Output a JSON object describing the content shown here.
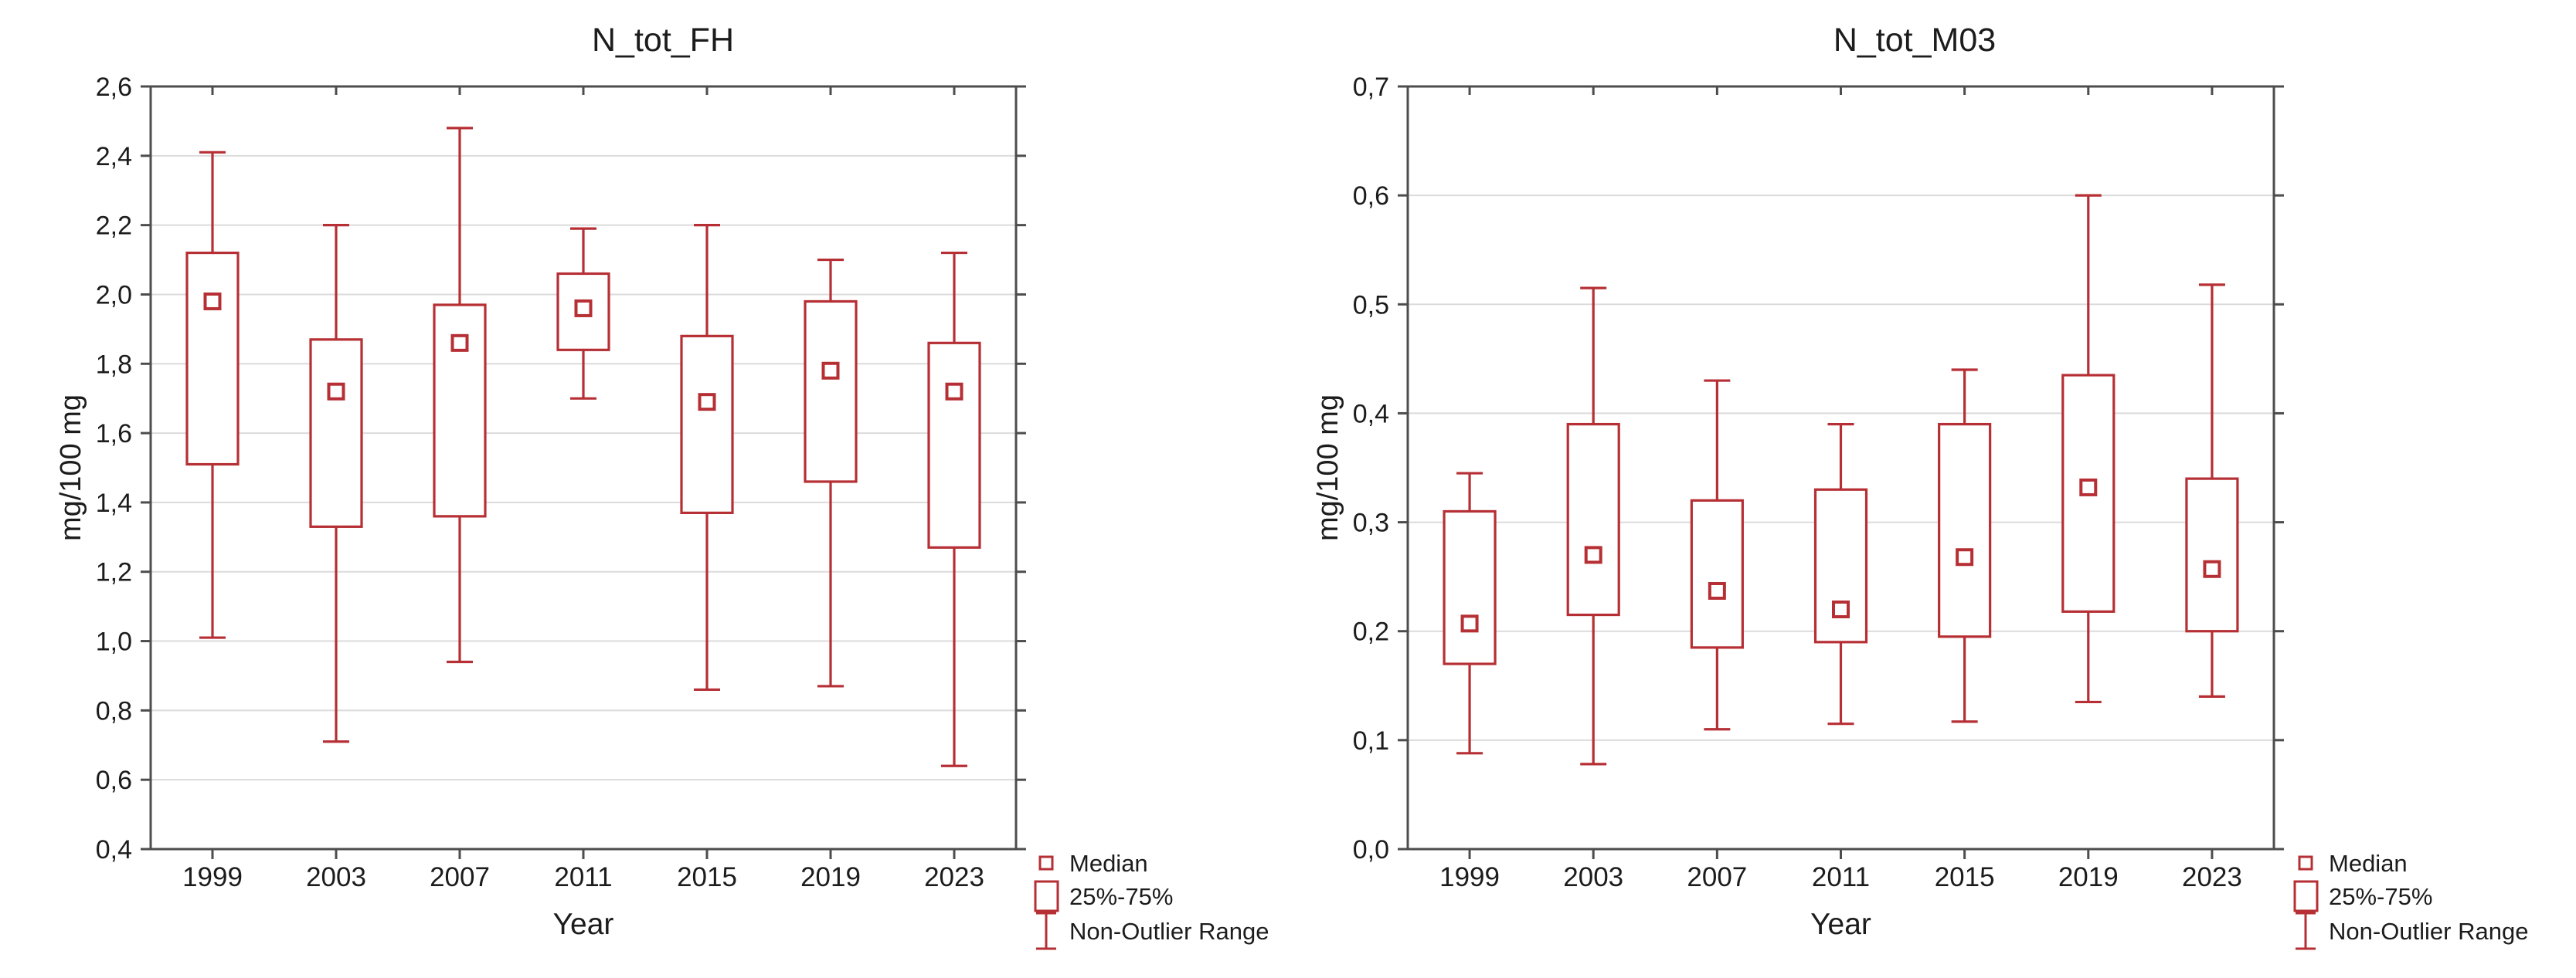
{
  "figure": {
    "background": "#ffffff",
    "accent_color": "#b62f34",
    "frame_color": "#4d4d4d",
    "grid_color": "#dbdbdb",
    "text_color": "#1c1c1c"
  },
  "chart_data": [
    {
      "type": "box",
      "title": "N_tot_FH",
      "xlabel": "Year",
      "ylabel": "mg/100 mg",
      "ylim": [
        0.4,
        2.6
      ],
      "ytick_step": 0.2,
      "decimal_separator": ",",
      "grid": "horizontal",
      "legend_position": "bottom-right",
      "ytick_labels": [
        "0,4",
        "0,6",
        "0,8",
        "1,0",
        "1,2",
        "1,4",
        "1,6",
        "1,8",
        "2,0",
        "2,2",
        "2,4",
        "2,6"
      ],
      "categories": [
        "1999",
        "2003",
        "2007",
        "2011",
        "2015",
        "2019",
        "2023"
      ],
      "series": [
        {
          "year": "1999",
          "non_outlier_min": 1.01,
          "q1": 1.51,
          "median": 1.98,
          "q3": 2.12,
          "non_outlier_max": 2.41
        },
        {
          "year": "2003",
          "non_outlier_min": 0.71,
          "q1": 1.33,
          "median": 1.72,
          "q3": 1.87,
          "non_outlier_max": 2.2
        },
        {
          "year": "2007",
          "non_outlier_min": 0.94,
          "q1": 1.36,
          "median": 1.86,
          "q3": 1.97,
          "non_outlier_max": 2.48
        },
        {
          "year": "2011",
          "non_outlier_min": 1.7,
          "q1": 1.84,
          "median": 1.96,
          "q3": 2.06,
          "non_outlier_max": 2.19
        },
        {
          "year": "2015",
          "non_outlier_min": 0.86,
          "q1": 1.37,
          "median": 1.69,
          "q3": 1.88,
          "non_outlier_max": 2.2
        },
        {
          "year": "2019",
          "non_outlier_min": 0.87,
          "q1": 1.46,
          "median": 1.78,
          "q3": 1.98,
          "non_outlier_max": 2.1
        },
        {
          "year": "2023",
          "non_outlier_min": 0.64,
          "q1": 1.27,
          "median": 1.72,
          "q3": 1.86,
          "non_outlier_max": 2.12
        }
      ],
      "legend": [
        "Median",
        "25%-75%",
        "Non-Outlier Range"
      ]
    },
    {
      "type": "box",
      "title": "N_tot_M03",
      "xlabel": "Year",
      "ylabel": "mg/100 mg",
      "ylim": [
        0.0,
        0.7
      ],
      "ytick_step": 0.1,
      "decimal_separator": ",",
      "grid": "horizontal",
      "legend_position": "bottom-right",
      "ytick_labels": [
        "0,0",
        "0,1",
        "0,2",
        "0,3",
        "0,4",
        "0,5",
        "0,6",
        "0,7"
      ],
      "categories": [
        "1999",
        "2003",
        "2007",
        "2011",
        "2015",
        "2019",
        "2023"
      ],
      "series": [
        {
          "year": "1999",
          "non_outlier_min": 0.088,
          "q1": 0.17,
          "median": 0.207,
          "q3": 0.31,
          "non_outlier_max": 0.345
        },
        {
          "year": "2003",
          "non_outlier_min": 0.078,
          "q1": 0.215,
          "median": 0.27,
          "q3": 0.39,
          "non_outlier_max": 0.515
        },
        {
          "year": "2007",
          "non_outlier_min": 0.11,
          "q1": 0.185,
          "median": 0.237,
          "q3": 0.32,
          "non_outlier_max": 0.43
        },
        {
          "year": "2011",
          "non_outlier_min": 0.115,
          "q1": 0.19,
          "median": 0.22,
          "q3": 0.33,
          "non_outlier_max": 0.39
        },
        {
          "year": "2015",
          "non_outlier_min": 0.117,
          "q1": 0.195,
          "median": 0.268,
          "q3": 0.39,
          "non_outlier_max": 0.44
        },
        {
          "year": "2019",
          "non_outlier_min": 0.135,
          "q1": 0.218,
          "median": 0.332,
          "q3": 0.435,
          "non_outlier_max": 0.6
        },
        {
          "year": "2023",
          "non_outlier_min": 0.14,
          "q1": 0.2,
          "median": 0.257,
          "q3": 0.34,
          "non_outlier_max": 0.518
        }
      ],
      "legend": [
        "Median",
        "25%-75%",
        "Non-Outlier Range"
      ]
    }
  ]
}
